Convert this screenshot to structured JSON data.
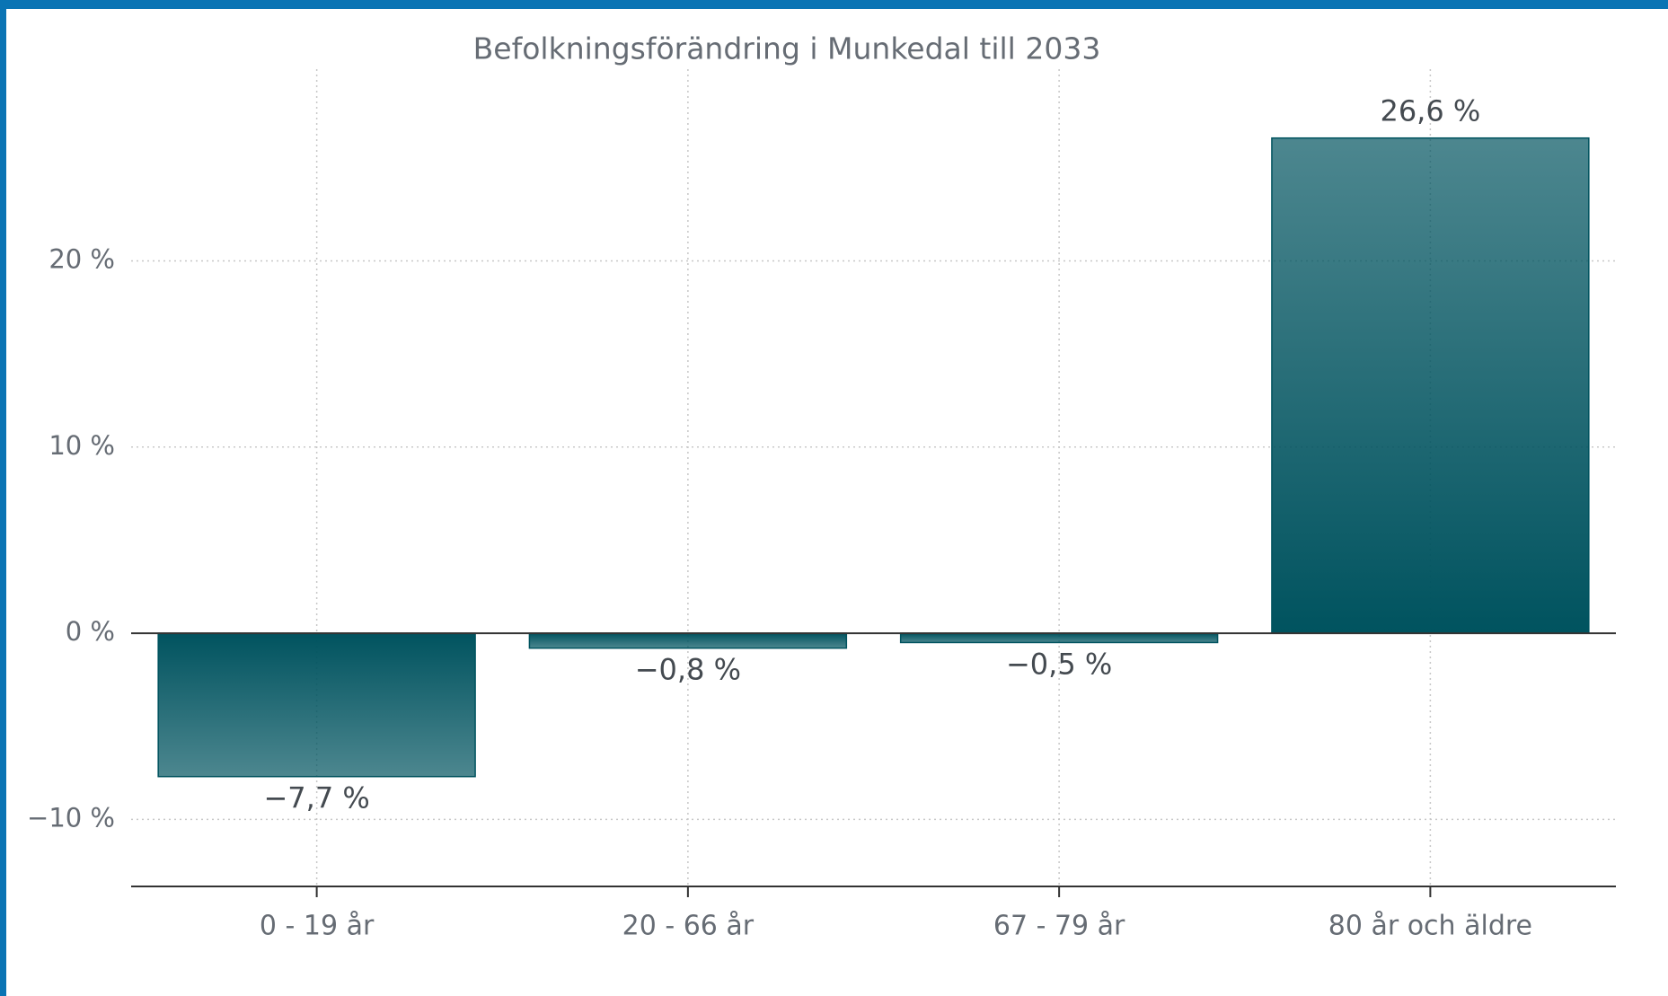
{
  "chart_data": {
    "type": "bar",
    "title": "Befolkningsförändring i Munkedal till 2033",
    "categories": [
      "0 - 19 år",
      "20 - 66 år",
      "67 - 79 år",
      "80 år och äldre"
    ],
    "values": [
      -7.7,
      -0.8,
      -0.5,
      26.6
    ],
    "value_labels": [
      "−7,7 %",
      "−0,8 %",
      "−0,5 %",
      "26,6 %"
    ],
    "color": "#00535f",
    "ylim": [
      -13.6,
      30.3
    ],
    "yticks": [
      {
        "value": -10,
        "label": "−10 %"
      },
      {
        "value": 0,
        "label": "0 %"
      },
      {
        "value": 10,
        "label": "10 %"
      },
      {
        "value": 20,
        "label": "20 %"
      }
    ],
    "grid": true
  }
}
